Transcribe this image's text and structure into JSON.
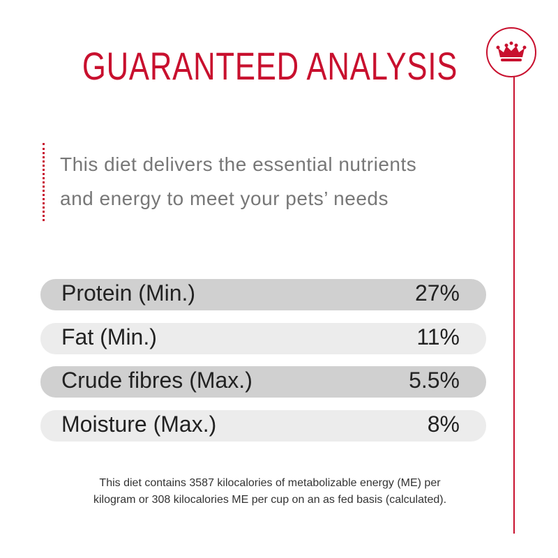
{
  "header": {
    "title": "GUARANTEED ANALYSIS"
  },
  "intro": {
    "lines": [
      "This diet delivers the essential nutrients",
      "and energy to meet your pets’ needs"
    ]
  },
  "table": {
    "rows": [
      [
        "Protein (Min.)",
        "27%"
      ],
      [
        "Fat (Min.)",
        "11%"
      ],
      [
        "Crude fibres (Max.)",
        "5.5%"
      ],
      [
        "Moisture (Max.)",
        "8%"
      ]
    ]
  },
  "footnote": {
    "lines": [
      "This diet contains 3587 kilocalories of metabolizable energy (ME) per",
      "kilogram or 308 kilocalories ME per cup on an as fed basis (calculated)."
    ]
  }
}
